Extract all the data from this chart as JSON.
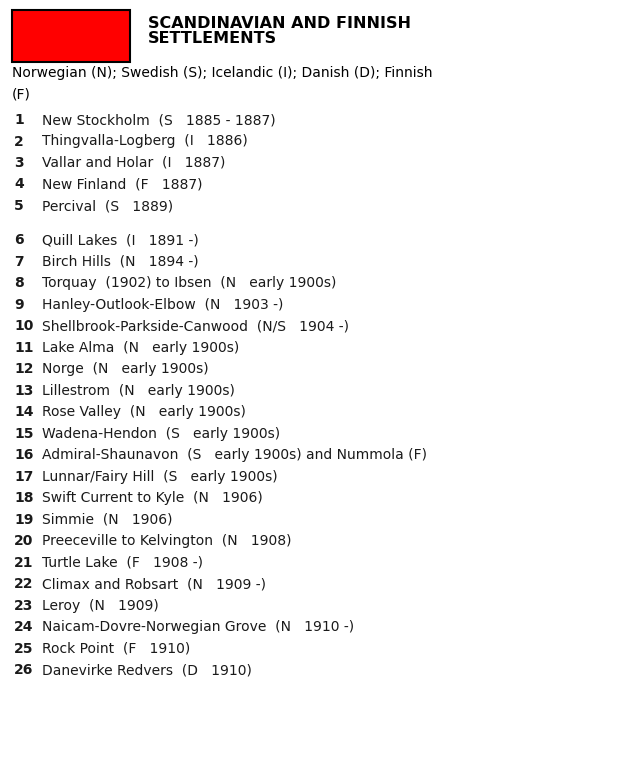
{
  "title_line1": "SCANDINAVIAN AND FINNISH",
  "title_line2": "SETTLEMENTS",
  "rect_color": "#FF0000",
  "rect_border_color": "#000000",
  "background_color": "#FFFFFF",
  "text_color": "#1a1a1a",
  "title_color": "#000000",
  "subtitle_line1": "Norwegian (N); Swedish (S); Icelandic (I); Danish (D); Finnish",
  "subtitle_line2": "(F)",
  "items": [
    {
      "num": "1",
      "text": "New Stockholm  (S   1885 - 1887)"
    },
    {
      "num": "2",
      "text": "Thingvalla-Logberg  (I   1886)"
    },
    {
      "num": "3",
      "text": "Vallar and Holar  (I   1887)"
    },
    {
      "num": "4",
      "text": "New Finland  (F   1887)"
    },
    {
      "num": "5",
      "text": "Percival  (S   1889)"
    },
    {
      "num": "",
      "text": ""
    },
    {
      "num": "6",
      "text": "Quill Lakes  (I   1891 -)"
    },
    {
      "num": "7",
      "text": "Birch Hills  (N   1894 -)"
    },
    {
      "num": "8",
      "text": "Torquay  (1902) to Ibsen  (N   early 1900s)"
    },
    {
      "num": "9",
      "text": "Hanley-Outlook-Elbow  (N   1903 -)"
    },
    {
      "num": "10",
      "text": "Shellbrook-Parkside-Canwood  (N/S   1904 -)"
    },
    {
      "num": "11",
      "text": "Lake Alma  (N   early 1900s)"
    },
    {
      "num": "12",
      "text": "Norge  (N   early 1900s)"
    },
    {
      "num": "13",
      "text": "Lillestrom  (N   early 1900s)"
    },
    {
      "num": "14",
      "text": "Rose Valley  (N   early 1900s)"
    },
    {
      "num": "15",
      "text": "Wadena-Hendon  (S   early 1900s)"
    },
    {
      "num": "16",
      "text": "Admiral-Shaunavon  (S   early 1900s) and Nummola (F)"
    },
    {
      "num": "17",
      "text": "Lunnar/Fairy Hill  (S   early 1900s)"
    },
    {
      "num": "18",
      "text": "Swift Current to Kyle  (N   1906)"
    },
    {
      "num": "19",
      "text": "Simmie  (N   1906)"
    },
    {
      "num": "20",
      "text": "Preeceville to Kelvington  (N   1908)"
    },
    {
      "num": "21",
      "text": "Turtle Lake  (F   1908 -)"
    },
    {
      "num": "22",
      "text": "Climax and Robsart  (N   1909 -)"
    },
    {
      "num": "23",
      "text": "Leroy  (N   1909)"
    },
    {
      "num": "24",
      "text": "Naicam-Dovre-Norwegian Grove  (N   1910 -)"
    },
    {
      "num": "25",
      "text": "Rock Point  (F   1910)"
    },
    {
      "num": "26",
      "text": "Danevirke Redvers  (D   1910)"
    }
  ]
}
